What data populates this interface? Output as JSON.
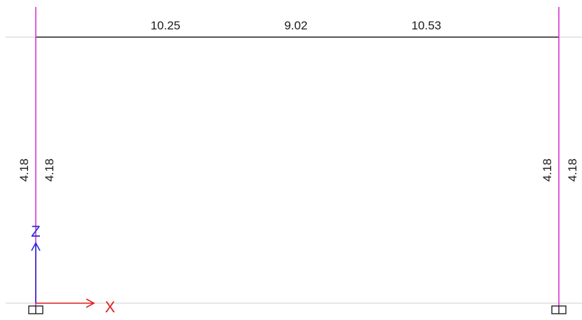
{
  "beam": {
    "values": [
      "10.25",
      "9.02",
      "10.53"
    ]
  },
  "columns": {
    "left": {
      "outer": "4.18",
      "inner": "4.18"
    },
    "right": {
      "outer": "4.18",
      "inner": "4.18"
    }
  },
  "axes": {
    "z_label": "Z",
    "x_label": "X"
  },
  "colors": {
    "beam": "#222222",
    "column": "#d633d6",
    "gridline": "#d8d8d8",
    "axis_z": "#2a2ad8",
    "axis_x": "#e02020",
    "support": "#222222"
  },
  "icons": {
    "supports": [
      "support-icon",
      "support-icon"
    ],
    "axes": [
      "z-axis-arrow-icon",
      "x-axis-arrow-icon"
    ]
  }
}
